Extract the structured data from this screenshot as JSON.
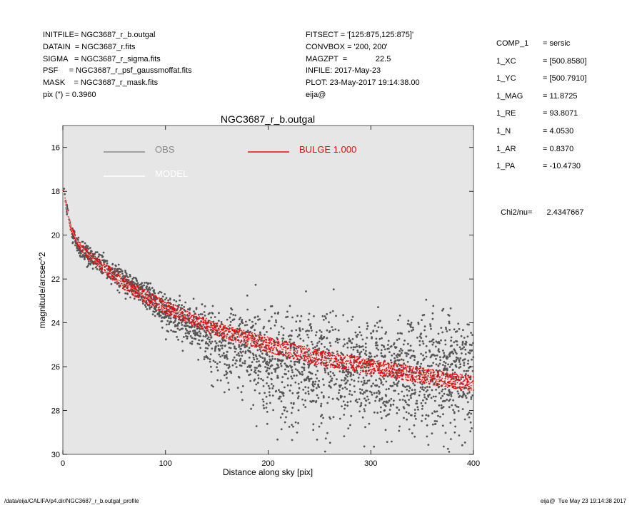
{
  "header_left": [
    {
      "key": "INITFILE=",
      "value": "NGC3687_r_b.outgal"
    },
    {
      "key": "DATAIN  =",
      "value": "NGC3687_r.fits"
    },
    {
      "key": "SIGMA   =",
      "value": "NGC3687_r_sigma.fits"
    },
    {
      "key": "PSF     =",
      "value": "NGC3687_r_psf_gaussmoffat.fits"
    },
    {
      "key": "MASK    =",
      "value": "NGC3687_r_mask.fits"
    },
    {
      "key": "pix (\") =",
      "value": "0.3960"
    }
  ],
  "header_mid": [
    {
      "key": "FITSECT =",
      "value": "'[125:875,125:875]'"
    },
    {
      "key": "CONVBOX =",
      "value": "'200, 200'"
    },
    {
      "key": "MAGZPT  =",
      "value": "            22.5"
    },
    {
      "key": "INFILE:",
      "value": "2017-May-23"
    },
    {
      "key": "PLOT:",
      "value": "23-May-2017 19:14:38.00"
    },
    {
      "key": "eija@",
      "value": ""
    }
  ],
  "params": [
    {
      "key": "COMP_1",
      "value": "= sersic"
    },
    {
      "key": "1_XC",
      "value": "= [500.8580]"
    },
    {
      "key": "1_YC",
      "value": "= [500.7910]"
    },
    {
      "key": "1_MAG",
      "value": "= 11.8725"
    },
    {
      "key": "1_RE",
      "value": "= 93.8071"
    },
    {
      "key": "1_N",
      "value": "= 4.0530"
    },
    {
      "key": "1_AR",
      "value": "= 0.8370"
    },
    {
      "key": "1_PA",
      "value": "= -10.4730"
    }
  ],
  "chi2": {
    "label": "Chi2/nu=",
    "value": "2.4347667"
  },
  "footer": {
    "left": "/data/eija/CALIFA/p4.dir/NGC3687_r_b.outgal_profile",
    "right": "eija@  Tue May 23 19:14:38 2017"
  },
  "colors": {
    "obs": "#555555",
    "model": "#ffffff",
    "bulge": "#ff0000",
    "background": "#e6e6e6"
  },
  "chart_data": {
    "type": "scatter",
    "title": "NGC3687_r_b.outgal",
    "xlabel": "Distance along sky [pix]",
    "ylabel": "magnitude/arcsec^2",
    "xlim": [
      0,
      400
    ],
    "ylim": [
      30,
      15
    ],
    "y_inverted": true,
    "x_ticks": [
      "0",
      "100",
      "200",
      "300",
      "400"
    ],
    "y_ticks": [
      "16",
      "18",
      "20",
      "22",
      "24",
      "26",
      "28",
      "30"
    ],
    "legend": [
      {
        "name": "OBS",
        "color": "#888888"
      },
      {
        "name": "MODEL",
        "color": "#ffffff"
      },
      {
        "name": "BULGE  1.000",
        "color": "#ff0000"
      }
    ],
    "series": [
      {
        "name": "OBS",
        "x": [
          1,
          3,
          8,
          15,
          25,
          40,
          60,
          80,
          100,
          120,
          140,
          160,
          180,
          200,
          250,
          300,
          350,
          400
        ],
        "y": [
          17.8,
          18.6,
          19.7,
          20.5,
          20.9,
          21.4,
          22.0,
          22.7,
          23.4,
          23.9,
          24.4,
          25.0,
          25.3,
          25.6,
          25.9,
          26.1,
          26.1,
          26.2
        ],
        "scatter": [
          0.1,
          0.1,
          0.15,
          0.2,
          0.25,
          0.3,
          0.3,
          0.35,
          0.45,
          0.55,
          0.7,
          1.1,
          1.2,
          1.3,
          1.4,
          1.5,
          1.5,
          1.5
        ]
      },
      {
        "name": "BULGE  1.000",
        "x": [
          1,
          3,
          8,
          15,
          25,
          40,
          60,
          80,
          100,
          120,
          150,
          200,
          250,
          300,
          350,
          400
        ],
        "y": [
          18.0,
          18.6,
          19.7,
          20.4,
          20.9,
          21.5,
          22.2,
          22.8,
          23.3,
          23.7,
          24.3,
          25.0,
          25.6,
          26.0,
          26.4,
          26.8
        ],
        "band": [
          0.05,
          0.08,
          0.1,
          0.15,
          0.2,
          0.25,
          0.3,
          0.3,
          0.3,
          0.3,
          0.3,
          0.35,
          0.35,
          0.35,
          0.35,
          0.35
        ]
      }
    ]
  }
}
